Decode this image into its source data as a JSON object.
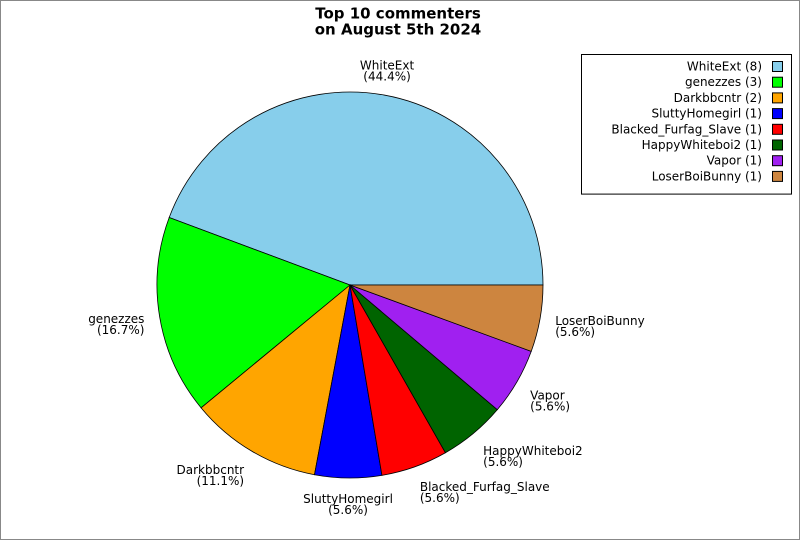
{
  "chart_data": {
    "type": "pie",
    "title": [
      "Top 10 commenters",
      "on August 5th 2024"
    ],
    "categories": [
      "WhiteExt",
      "genezzes",
      "Darkbbcntr",
      "SluttyHomegirl",
      "Blacked_Furfag_Slave",
      "HappyWhiteboi2",
      "Vapor",
      "LoserBoiBunny"
    ],
    "values": [
      44.4,
      16.7,
      11.1,
      5.6,
      5.6,
      5.6,
      5.6,
      5.6
    ],
    "value_labels": [
      "(44.4%)",
      "(16.7%)",
      "(11.1%)",
      "(5.6%)",
      "(5.6%)",
      "(5.6%)",
      "(5.6%)",
      "(5.6%)"
    ],
    "legend_labels": [
      "WhiteExt (8)",
      "genezzes (3)",
      "Darkbbcntr (2)",
      "SluttyHomegirl (1)",
      "Blacked_Furfag_Slave (1)",
      "HappyWhiteboi2 (1)",
      "Vapor (1)",
      "LoserBoiBunny (1)"
    ],
    "colors": [
      "#87ceeb",
      "#00ff00",
      "#ffa500",
      "#0000ff",
      "#ff0000",
      "#006400",
      "#a020f0",
      "#cd853f"
    ],
    "legend": "upper right"
  }
}
